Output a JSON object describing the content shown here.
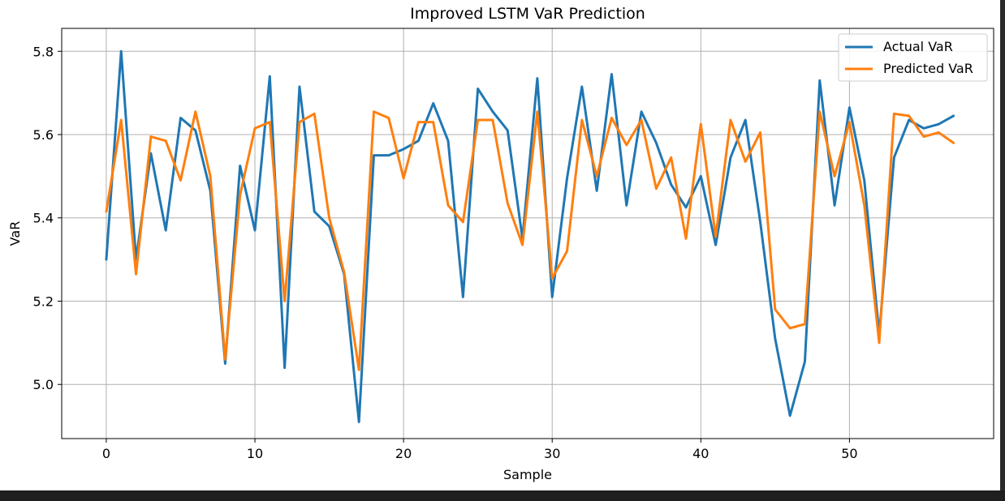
{
  "chart_data": {
    "type": "line",
    "title": "Improved LSTM VaR Prediction",
    "xlabel": "Sample",
    "ylabel": "VaR",
    "xlim": [
      -3,
      59.7
    ],
    "ylim": [
      4.87,
      5.855
    ],
    "xticks": [
      0,
      10,
      20,
      30,
      40,
      50
    ],
    "yticks": [
      5.0,
      5.2,
      5.4,
      5.6,
      5.8
    ],
    "grid": true,
    "legend": "top-right",
    "series": [
      {
        "name": "Actual VaR",
        "color": "#1f77b4",
        "values": [
          5.3,
          5.8,
          5.3,
          5.555,
          5.37,
          5.64,
          5.61,
          5.465,
          5.05,
          5.525,
          5.37,
          5.74,
          5.04,
          5.715,
          5.415,
          5.38,
          5.265,
          4.91,
          5.55,
          5.55,
          5.565,
          5.585,
          5.675,
          5.585,
          5.21,
          5.71,
          5.655,
          5.61,
          5.35,
          5.735,
          5.21,
          5.495,
          5.715,
          5.465,
          5.745,
          5.43,
          5.655,
          5.58,
          5.48,
          5.425,
          5.5,
          5.335,
          5.545,
          5.635,
          5.39,
          5.11,
          4.925,
          5.055,
          5.73,
          5.43,
          5.665,
          5.49,
          5.12,
          5.545,
          5.635,
          5.615,
          5.625,
          5.645
        ]
      },
      {
        "name": "Predicted VaR",
        "color": "#ff7f0e",
        "values": [
          5.415,
          5.635,
          5.265,
          5.595,
          5.585,
          5.49,
          5.655,
          5.5,
          5.06,
          5.455,
          5.615,
          5.63,
          5.2,
          5.63,
          5.65,
          5.4,
          5.27,
          5.035,
          5.655,
          5.64,
          5.495,
          5.63,
          5.63,
          5.43,
          5.39,
          5.635,
          5.635,
          5.435,
          5.335,
          5.655,
          5.255,
          5.32,
          5.635,
          5.5,
          5.64,
          5.575,
          5.635,
          5.47,
          5.545,
          5.35,
          5.625,
          5.355,
          5.635,
          5.535,
          5.605,
          5.18,
          5.135,
          5.145,
          5.655,
          5.5,
          5.63,
          5.43,
          5.1,
          5.65,
          5.645,
          5.595,
          5.605,
          5.58
        ]
      }
    ]
  }
}
